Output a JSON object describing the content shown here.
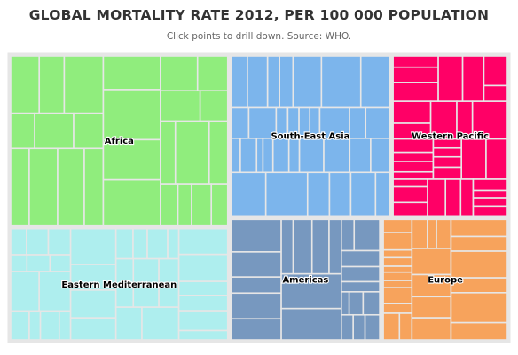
{
  "title": "GLOBAL MORTALITY RATE 2012, PER 100 000 POPULATION",
  "subtitle": "Click points to drill down. Source: WHO.",
  "chart_data": {
    "type": "treemap",
    "title": "GLOBAL MORTALITY RATE 2012, PER 100 000 POPULATION",
    "subtitle": "Click points to drill down. Source: WHO.",
    "series": [
      {
        "name": "Africa",
        "color": "#90ed7d",
        "share": 0.265
      },
      {
        "name": "South-East Asia",
        "color": "#7cb5ec",
        "share": 0.184
      },
      {
        "name": "Western Pacific",
        "color": "#ff0066",
        "share": 0.134
      },
      {
        "name": "Eastern Mediterranean",
        "color": "#aeeeee",
        "share": 0.176
      },
      {
        "name": "Americas",
        "color": "#7798bf",
        "share": 0.131
      },
      {
        "name": "Europe",
        "color": "#f7a35c",
        "share": 0.11
      }
    ]
  }
}
